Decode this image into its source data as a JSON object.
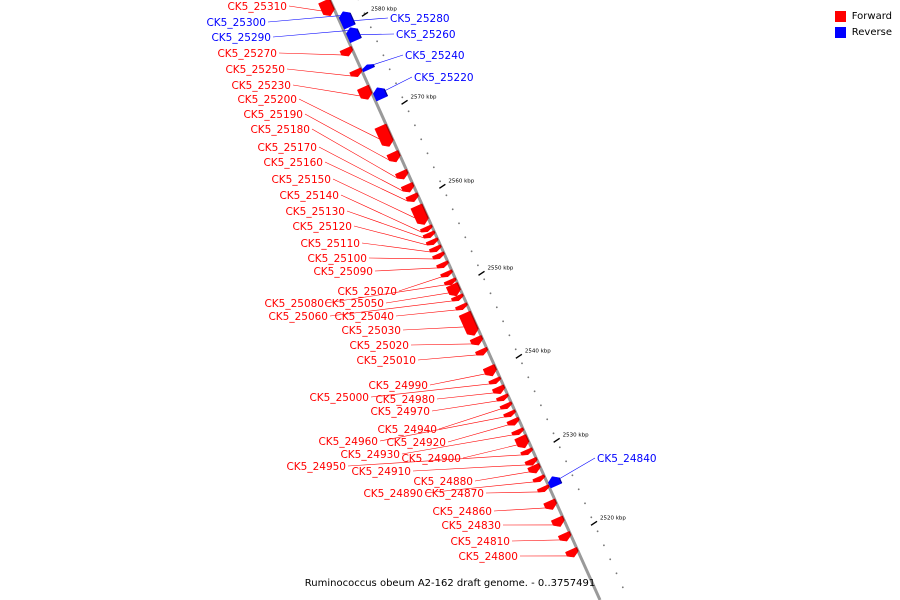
{
  "caption": "Ruminococcus obeum A2-162 draft genome. - 0..3757491",
  "colors": {
    "forward": "#ff0000",
    "reverse": "#0000ff",
    "backbone": "#9a9a9a"
  },
  "legend": [
    {
      "label": "Forward",
      "color": "#ff0000"
    },
    {
      "label": "Reverse",
      "color": "#0000ff"
    }
  ],
  "ticks": [
    "2580 kbp",
    "2570 kbp",
    "2560 kbp",
    "2550 kbp",
    "2540 kbp",
    "2530 kbp",
    "2520 kbp"
  ],
  "genes": [
    {
      "name": "CK5_25310",
      "strand": "forward"
    },
    {
      "name": "CK5_25300",
      "strand": "reverse"
    },
    {
      "name": "CK5_25290",
      "strand": "reverse"
    },
    {
      "name": "CK5_25280",
      "strand": "reverse"
    },
    {
      "name": "CK5_25270",
      "strand": "forward"
    },
    {
      "name": "CK5_25260",
      "strand": "reverse"
    },
    {
      "name": "CK5_25250",
      "strand": "forward"
    },
    {
      "name": "CK5_25240",
      "strand": "reverse"
    },
    {
      "name": "CK5_25230",
      "strand": "forward"
    },
    {
      "name": "CK5_25220",
      "strand": "reverse"
    },
    {
      "name": "CK5_25200",
      "strand": "forward"
    },
    {
      "name": "CK5_25190",
      "strand": "forward"
    },
    {
      "name": "CK5_25180",
      "strand": "forward"
    },
    {
      "name": "CK5_25170",
      "strand": "forward"
    },
    {
      "name": "CK5_25160",
      "strand": "forward"
    },
    {
      "name": "CK5_25150",
      "strand": "forward"
    },
    {
      "name": "CK5_25140",
      "strand": "forward"
    },
    {
      "name": "CK5_25130",
      "strand": "forward"
    },
    {
      "name": "CK5_25120",
      "strand": "forward"
    },
    {
      "name": "CK5_25110",
      "strand": "forward"
    },
    {
      "name": "CK5_25100",
      "strand": "forward"
    },
    {
      "name": "CK5_25090",
      "strand": "forward"
    },
    {
      "name": "CK5_25070",
      "strand": "forward"
    },
    {
      "name": "CK5_25080",
      "strand": "forward"
    },
    {
      "name": "CK5_25050",
      "strand": "forward"
    },
    {
      "name": "CK5_25060",
      "strand": "forward"
    },
    {
      "name": "CK5_25040",
      "strand": "forward"
    },
    {
      "name": "CK5_25030",
      "strand": "forward"
    },
    {
      "name": "CK5_25020",
      "strand": "forward"
    },
    {
      "name": "CK5_25010",
      "strand": "forward"
    },
    {
      "name": "CK5_24990",
      "strand": "forward"
    },
    {
      "name": "CK5_25000",
      "strand": "forward"
    },
    {
      "name": "CK5_24980",
      "strand": "forward"
    },
    {
      "name": "CK5_24970",
      "strand": "forward"
    },
    {
      "name": "CK5_24940",
      "strand": "forward"
    },
    {
      "name": "CK5_24960",
      "strand": "forward"
    },
    {
      "name": "CK5_24920",
      "strand": "forward"
    },
    {
      "name": "CK5_24930",
      "strand": "forward"
    },
    {
      "name": "CK5_24900",
      "strand": "forward"
    },
    {
      "name": "CK5_24950",
      "strand": "forward"
    },
    {
      "name": "CK5_24910",
      "strand": "forward"
    },
    {
      "name": "CK5_24840",
      "strand": "reverse"
    },
    {
      "name": "CK5_24880",
      "strand": "forward"
    },
    {
      "name": "CK5_24890",
      "strand": "forward"
    },
    {
      "name": "CK5_24870",
      "strand": "forward"
    },
    {
      "name": "CK5_24860",
      "strand": "forward"
    },
    {
      "name": "CK5_24830",
      "strand": "forward"
    },
    {
      "name": "CK5_24810",
      "strand": "forward"
    },
    {
      "name": "CK5_24800",
      "strand": "forward"
    }
  ]
}
